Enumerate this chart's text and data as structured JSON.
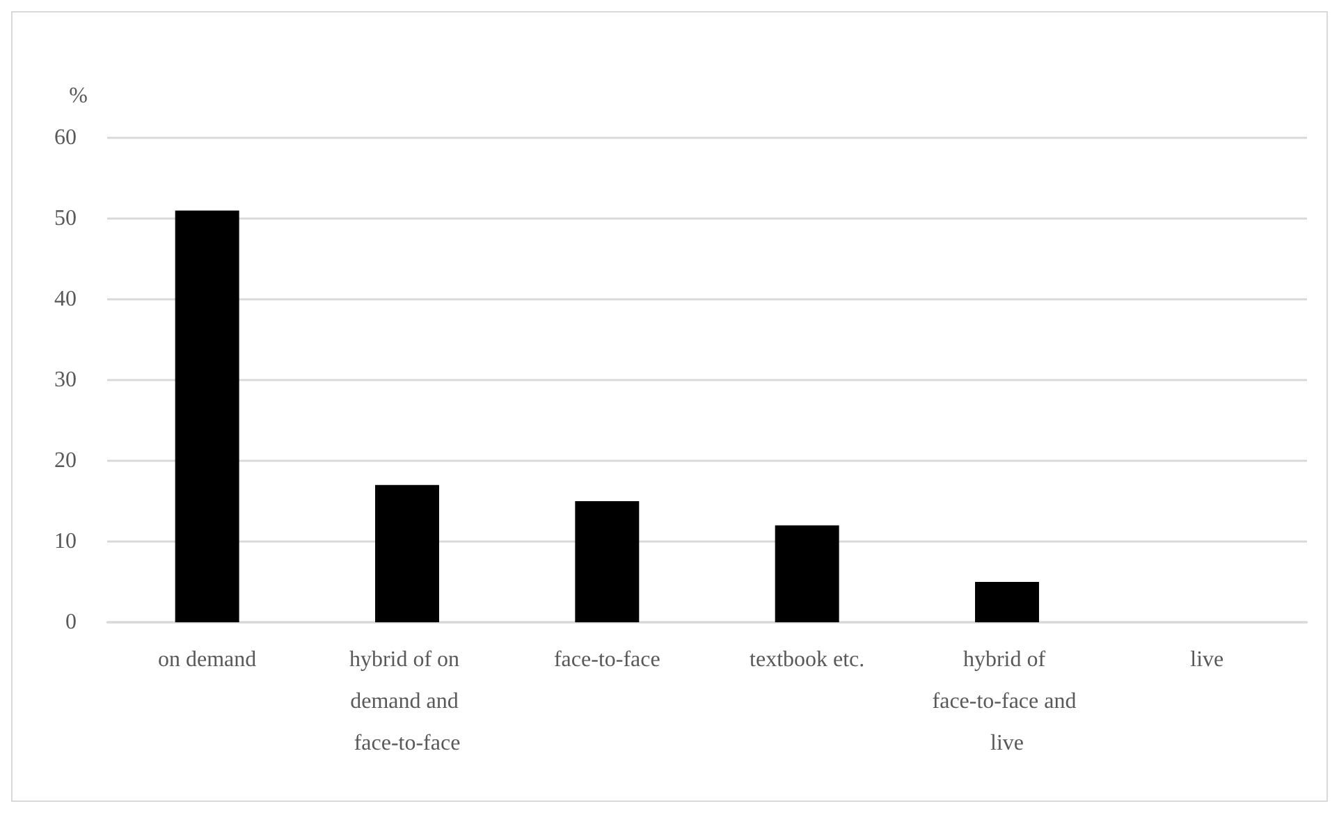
{
  "chart_data": {
    "type": "bar",
    "ylabel": "%",
    "categories": [
      "on demand",
      "hybrid of on demand and face-to-face",
      "face-to-face",
      "textbook etc.",
      "hybrid of face-to-face and live",
      "live"
    ],
    "values": [
      51,
      17,
      15,
      12,
      5,
      0
    ],
    "color": "#000000",
    "ylim": [
      0,
      60
    ],
    "yticks": [
      0,
      10,
      20,
      30,
      40,
      50,
      60
    ],
    "grid": "y"
  }
}
